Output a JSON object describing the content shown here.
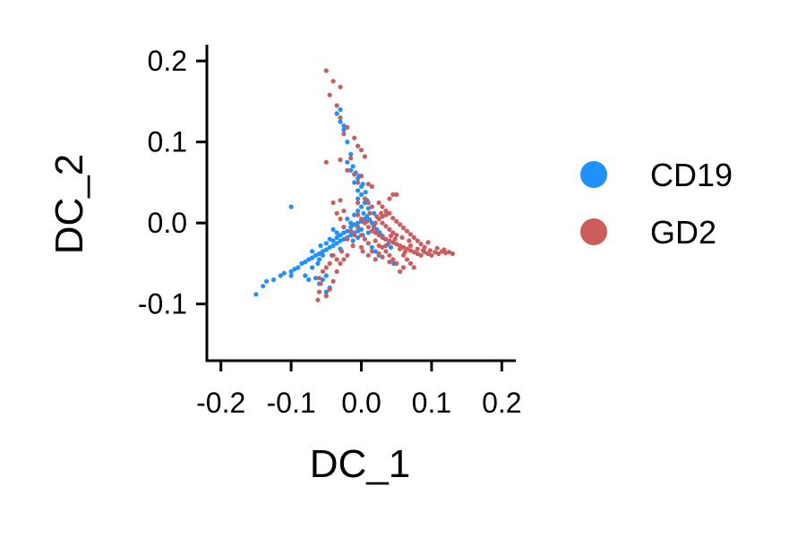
{
  "chart_data": {
    "type": "scatter",
    "title": "",
    "xlabel": "DC_1",
    "ylabel": "DC_2",
    "xlim": [
      -0.22,
      0.22
    ],
    "ylim": [
      -0.17,
      0.22
    ],
    "xticks": [
      -0.2,
      -0.1,
      0.0,
      0.1,
      0.2
    ],
    "xtick_labels": [
      "-0.2",
      "-0.1",
      "0.0",
      "0.1",
      "0.2"
    ],
    "yticks": [
      -0.1,
      0.0,
      0.1,
      0.2
    ],
    "ytick_labels": [
      "-0.1",
      "0.0",
      "0.1",
      "0.2"
    ],
    "grid": false,
    "legend_position": "right",
    "series": [
      {
        "name": "CD19",
        "color": "#1E90FF",
        "points": [
          [
            -0.15,
            -0.088
          ],
          [
            -0.14,
            -0.078
          ],
          [
            -0.135,
            -0.072
          ],
          [
            -0.125,
            -0.07
          ],
          [
            -0.115,
            -0.065
          ],
          [
            -0.11,
            -0.062
          ],
          [
            -0.1,
            -0.06
          ],
          [
            -0.095,
            -0.057
          ],
          [
            -0.1,
            -0.065
          ],
          [
            -0.09,
            -0.055
          ],
          [
            -0.085,
            -0.05
          ],
          [
            -0.08,
            -0.048
          ],
          [
            -0.075,
            -0.045
          ],
          [
            -0.07,
            -0.043
          ],
          [
            -0.065,
            -0.04
          ],
          [
            -0.06,
            -0.038
          ],
          [
            -0.055,
            -0.035
          ],
          [
            -0.05,
            -0.033
          ],
          [
            -0.045,
            -0.03
          ],
          [
            -0.04,
            -0.028
          ],
          [
            -0.035,
            -0.025
          ],
          [
            -0.03,
            -0.022
          ],
          [
            -0.025,
            -0.02
          ],
          [
            -0.02,
            -0.018
          ],
          [
            -0.015,
            -0.015
          ],
          [
            -0.01,
            -0.012
          ],
          [
            -0.005,
            -0.01
          ],
          [
            0.0,
            -0.008
          ],
          [
            -0.06,
            -0.045
          ],
          [
            -0.07,
            -0.055
          ],
          [
            -0.08,
            -0.065
          ],
          [
            -0.075,
            -0.07
          ],
          [
            -0.065,
            -0.068
          ],
          [
            -0.06,
            -0.075
          ],
          [
            -0.055,
            -0.07
          ],
          [
            -0.05,
            -0.065
          ],
          [
            -0.045,
            -0.08
          ],
          [
            -0.05,
            -0.085
          ],
          [
            -0.055,
            -0.04
          ],
          [
            -0.05,
            -0.025
          ],
          [
            -0.045,
            -0.02
          ],
          [
            -0.04,
            -0.022
          ],
          [
            -0.035,
            -0.018
          ],
          [
            -0.03,
            -0.015
          ],
          [
            -0.025,
            -0.012
          ],
          [
            -0.02,
            -0.01
          ],
          [
            -0.015,
            -0.005
          ],
          [
            -0.01,
            -0.002
          ],
          [
            -0.005,
            0.0
          ],
          [
            0.0,
            0.002
          ],
          [
            0.005,
            0.005
          ],
          [
            -0.01,
            0.01
          ],
          [
            -0.005,
            0.015
          ],
          [
            0.0,
            0.02
          ],
          [
            0.005,
            0.025
          ],
          [
            -0.005,
            0.03
          ],
          [
            0.0,
            0.035
          ],
          [
            -0.005,
            0.04
          ],
          [
            0.0,
            0.045
          ],
          [
            -0.01,
            0.05
          ],
          [
            -0.005,
            0.055
          ],
          [
            -0.01,
            0.06
          ],
          [
            -0.015,
            0.065
          ],
          [
            -0.012,
            0.07
          ],
          [
            -0.008,
            0.062
          ],
          [
            -0.003,
            0.058
          ],
          [
            0.002,
            0.048
          ],
          [
            0.006,
            0.038
          ],
          [
            0.008,
            0.028
          ],
          [
            0.003,
            0.012
          ],
          [
            0.008,
            0.008
          ],
          [
            0.012,
            0.004
          ],
          [
            0.015,
            0.0
          ],
          [
            0.018,
            -0.004
          ],
          [
            0.022,
            -0.008
          ],
          [
            0.026,
            -0.012
          ],
          [
            0.03,
            -0.016
          ],
          [
            0.034,
            -0.02
          ],
          [
            0.038,
            -0.026
          ],
          [
            0.042,
            -0.03
          ],
          [
            0.046,
            -0.05
          ],
          [
            0.025,
            -0.04
          ],
          [
            0.02,
            -0.035
          ],
          [
            0.015,
            -0.03
          ],
          [
            0.01,
            -0.025
          ],
          [
            -0.1,
            0.02
          ],
          [
            -0.02,
            0.1
          ],
          [
            -0.025,
            0.115
          ],
          [
            -0.03,
            0.125
          ],
          [
            -0.035,
            0.135
          ],
          [
            -0.03,
            0.14
          ],
          [
            -0.025,
            0.12
          ],
          [
            -0.015,
            0.085
          ],
          [
            -0.02,
            0.075
          ],
          [
            -0.015,
            0.0
          ],
          [
            -0.025,
            -0.005
          ],
          [
            -0.035,
            -0.012
          ],
          [
            -0.04,
            -0.008
          ],
          [
            -0.02,
            0.005
          ],
          [
            0.002,
            -0.015
          ],
          [
            -0.012,
            -0.022
          ],
          [
            -0.03,
            -0.032
          ],
          [
            -0.042,
            -0.04
          ],
          [
            -0.058,
            -0.028
          ],
          [
            -0.07,
            -0.035
          ],
          [
            -0.062,
            -0.05
          ],
          [
            -0.005,
            -0.018
          ],
          [
            0.01,
            -0.012
          ],
          [
            0.018,
            0.012
          ],
          [
            0.01,
            0.018
          ]
        ]
      },
      {
        "name": "GD2",
        "color": "#CD5C5C",
        "points": [
          [
            -0.05,
            0.188
          ],
          [
            -0.04,
            0.175
          ],
          [
            -0.03,
            0.168
          ],
          [
            -0.045,
            0.158
          ],
          [
            -0.035,
            0.145
          ],
          [
            -0.03,
            0.13
          ],
          [
            -0.02,
            0.118
          ],
          [
            -0.025,
            0.11
          ],
          [
            -0.01,
            0.105
          ],
          [
            -0.005,
            0.095
          ],
          [
            0.0,
            0.09
          ],
          [
            0.005,
            0.082
          ],
          [
            -0.015,
            0.08
          ],
          [
            -0.03,
            0.078
          ],
          [
            -0.05,
            0.075
          ],
          [
            -0.02,
            0.065
          ],
          [
            -0.01,
            0.06
          ],
          [
            0.0,
            0.058
          ],
          [
            -0.005,
            0.05
          ],
          [
            0.01,
            0.048
          ],
          [
            0.015,
            0.045
          ],
          [
            -0.04,
            0.025
          ],
          [
            -0.03,
            0.028
          ],
          [
            -0.025,
            0.015
          ],
          [
            -0.035,
            0.012
          ],
          [
            -0.03,
            0.005
          ],
          [
            -0.025,
            -0.005
          ],
          [
            -0.015,
            -0.01
          ],
          [
            -0.01,
            -0.015
          ],
          [
            -0.005,
            0.01
          ],
          [
            0.0,
            0.005
          ],
          [
            0.005,
            0.0
          ],
          [
            0.01,
            -0.005
          ],
          [
            0.015,
            -0.01
          ],
          [
            0.02,
            -0.012
          ],
          [
            0.025,
            -0.015
          ],
          [
            0.03,
            -0.018
          ],
          [
            0.035,
            -0.02
          ],
          [
            0.04,
            -0.022
          ],
          [
            0.045,
            -0.024
          ],
          [
            0.05,
            -0.026
          ],
          [
            0.055,
            -0.028
          ],
          [
            0.06,
            -0.03
          ],
          [
            0.065,
            -0.032
          ],
          [
            0.07,
            -0.034
          ],
          [
            0.075,
            -0.036
          ],
          [
            0.08,
            -0.038
          ],
          [
            0.085,
            -0.04
          ],
          [
            0.09,
            -0.036
          ],
          [
            0.095,
            -0.038
          ],
          [
            0.1,
            -0.04
          ],
          [
            0.105,
            -0.036
          ],
          [
            0.11,
            -0.038
          ],
          [
            0.115,
            -0.035
          ],
          [
            0.12,
            -0.037
          ],
          [
            0.125,
            -0.036
          ],
          [
            0.13,
            -0.038
          ],
          [
            0.06,
            -0.04
          ],
          [
            0.065,
            -0.045
          ],
          [
            0.07,
            -0.05
          ],
          [
            0.075,
            -0.055
          ],
          [
            0.06,
            -0.055
          ],
          [
            0.055,
            -0.06
          ],
          [
            0.05,
            -0.05
          ],
          [
            0.045,
            -0.045
          ],
          [
            0.04,
            -0.04
          ],
          [
            0.035,
            -0.035
          ],
          [
            0.03,
            -0.03
          ],
          [
            0.025,
            -0.028
          ],
          [
            0.02,
            -0.022
          ],
          [
            0.01,
            -0.025
          ],
          [
            0.005,
            -0.02
          ],
          [
            0.0,
            -0.015
          ],
          [
            -0.005,
            -0.005
          ],
          [
            0.02,
            0.0
          ],
          [
            0.025,
            0.005
          ],
          [
            0.03,
            0.008
          ],
          [
            0.035,
            0.01
          ],
          [
            0.04,
            0.012
          ],
          [
            0.045,
            0.006
          ],
          [
            0.05,
            0.002
          ],
          [
            0.055,
            -0.002
          ],
          [
            0.06,
            -0.006
          ],
          [
            0.065,
            -0.01
          ],
          [
            0.07,
            -0.014
          ],
          [
            0.075,
            -0.018
          ],
          [
            0.08,
            -0.022
          ],
          [
            0.085,
            -0.026
          ],
          [
            0.09,
            -0.03
          ],
          [
            0.095,
            -0.024
          ],
          [
            0.05,
            -0.015
          ],
          [
            0.045,
            -0.012
          ],
          [
            0.04,
            -0.008
          ],
          [
            0.035,
            -0.004
          ],
          [
            0.03,
            0.0
          ],
          [
            0.025,
            0.025
          ],
          [
            0.03,
            0.02
          ],
          [
            0.035,
            0.015
          ],
          [
            0.04,
            0.03
          ],
          [
            0.045,
            0.035
          ],
          [
            0.05,
            0.035
          ],
          [
            0.015,
            0.02
          ],
          [
            0.01,
            0.025
          ],
          [
            0.005,
            0.03
          ],
          [
            -0.005,
            0.025
          ],
          [
            -0.04,
            -0.04
          ],
          [
            -0.045,
            -0.05
          ],
          [
            -0.05,
            -0.055
          ],
          [
            -0.055,
            -0.06
          ],
          [
            -0.06,
            -0.068
          ],
          [
            -0.058,
            -0.075
          ],
          [
            -0.06,
            -0.085
          ],
          [
            -0.062,
            -0.095
          ],
          [
            -0.05,
            -0.09
          ],
          [
            -0.045,
            -0.082
          ],
          [
            -0.04,
            -0.072
          ],
          [
            -0.035,
            -0.06
          ],
          [
            -0.03,
            -0.05
          ],
          [
            -0.025,
            -0.045
          ],
          [
            -0.02,
            -0.04
          ],
          [
            0.0,
            -0.03
          ],
          [
            0.01,
            -0.04
          ],
          [
            0.02,
            -0.045
          ],
          [
            0.03,
            -0.042
          ],
          [
            0.04,
            -0.048
          ],
          [
            0.015,
            -0.035
          ],
          [
            0.025,
            -0.038
          ],
          [
            0.035,
            -0.028
          ],
          [
            0.055,
            -0.032
          ],
          [
            0.062,
            -0.036
          ],
          [
            0.07,
            -0.028
          ],
          [
            0.08,
            -0.032
          ],
          [
            0.088,
            -0.034
          ],
          [
            0.098,
            -0.034
          ],
          [
            0.108,
            -0.031
          ],
          [
            0.118,
            -0.033
          ],
          [
            0.068,
            -0.022
          ],
          [
            0.058,
            -0.018
          ],
          [
            0.048,
            -0.02
          ],
          [
            0.042,
            -0.016
          ],
          [
            0.018,
            -0.006
          ],
          [
            0.008,
            0.002
          ],
          [
            0.012,
            0.012
          ],
          [
            0.022,
            0.008
          ],
          [
            0.028,
            0.012
          ],
          [
            -0.02,
            -0.02
          ],
          [
            -0.012,
            -0.028
          ],
          [
            -0.035,
            -0.045
          ],
          [
            -0.028,
            -0.035
          ],
          [
            0.002,
            -0.035
          ]
        ]
      }
    ]
  }
}
